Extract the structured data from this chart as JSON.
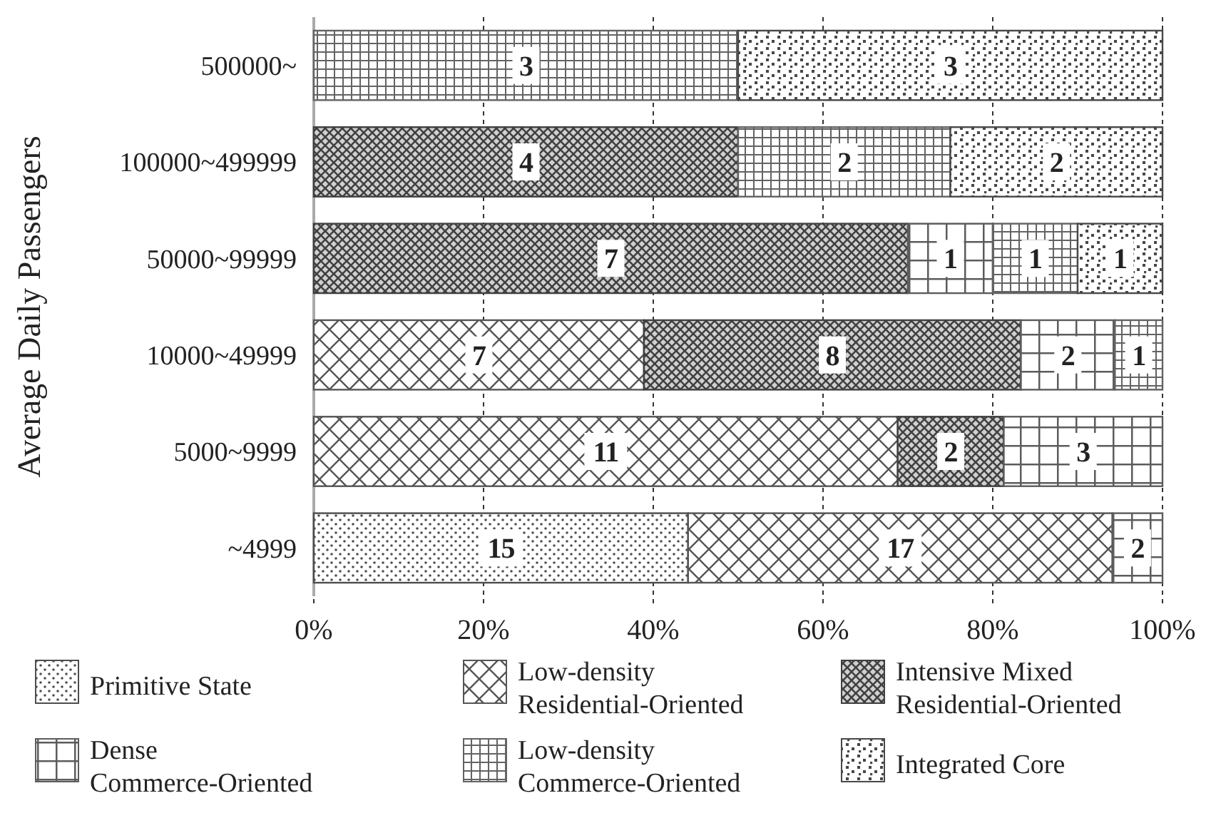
{
  "chart_data": {
    "type": "bar",
    "orientation": "horizontal",
    "stacked": true,
    "ylabel": "Average Daily Passengers",
    "categories": [
      "500000~",
      "100000~499999",
      "50000~99999",
      "10000~49999",
      "5000~9999",
      "~4999"
    ],
    "xlim": [
      0,
      100
    ],
    "xticks": [
      {
        "value": 0,
        "label": "0%"
      },
      {
        "value": 20,
        "label": "20%"
      },
      {
        "value": 40,
        "label": "40%"
      },
      {
        "value": 60,
        "label": "60%"
      },
      {
        "value": 80,
        "label": "80%"
      },
      {
        "value": 100,
        "label": "100%"
      }
    ],
    "grid": "x",
    "legend": "bottom",
    "series": [
      {
        "name": "Primitive State",
        "color": "#4d4d4d",
        "values": [
          null,
          null,
          null,
          null,
          null,
          44.1
        ]
      },
      {
        "name": "Low-density Residential-Oriented",
        "color": "#555555",
        "values": [
          null,
          null,
          null,
          38.9,
          68.8,
          50
        ]
      },
      {
        "name": "Intensive Mixed Residential-Oriented",
        "color": "#404040",
        "values": [
          null,
          50,
          70,
          44.4,
          12.5,
          null
        ]
      },
      {
        "name": "Dense Commerce-Oriented",
        "color": "#5c5c5c",
        "values": [
          null,
          null,
          10,
          11.1,
          18.7,
          5.9
        ]
      },
      {
        "name": "Low-density Commerce-Oriented",
        "color": "#636363",
        "values": [
          50,
          25,
          10,
          5.6,
          null,
          null
        ]
      },
      {
        "name": "Integrated Core",
        "color": "#484848",
        "values": [
          50,
          25,
          10,
          null,
          null,
          null
        ]
      }
    ],
    "annotations": [
      "3",
      "3",
      "4",
      "2",
      "2",
      "7",
      "1",
      "1",
      "1",
      "7",
      "8",
      "2",
      "1",
      "11",
      "2",
      "3",
      "15",
      "17",
      "2"
    ]
  }
}
